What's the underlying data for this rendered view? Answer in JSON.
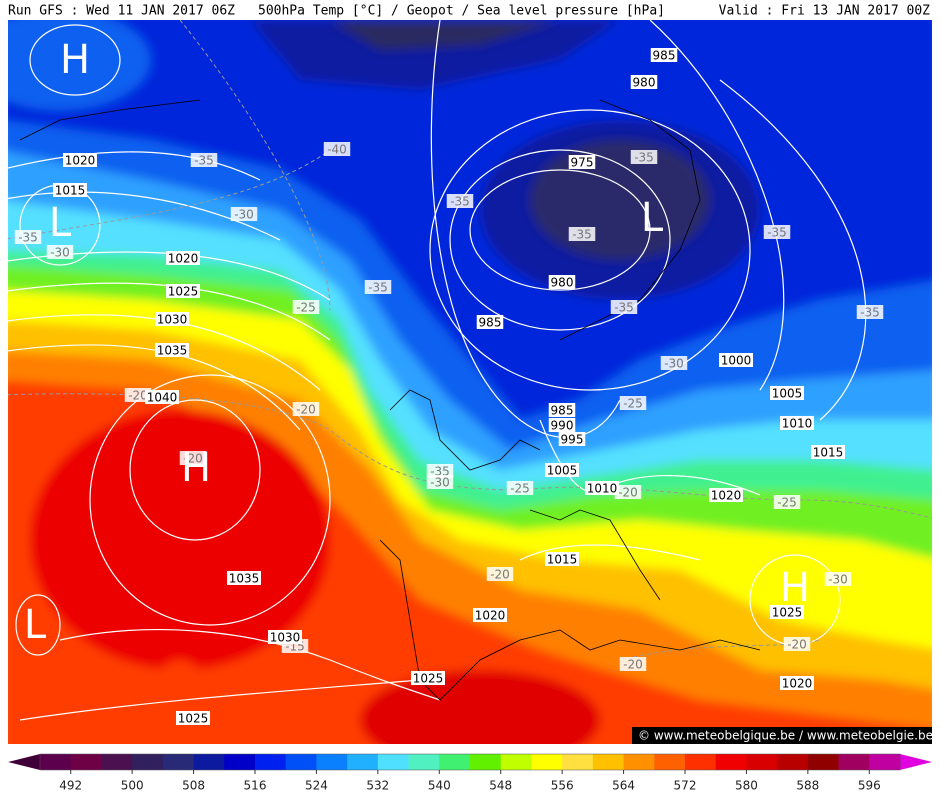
{
  "header": {
    "run": "Run GFS : Wed 11 JAN 2017 06Z",
    "title": "500hPa Temp [°C] / Geopot / Sea level pressure [hPa]",
    "valid": "Valid : Fri 13 JAN 2017 00Z"
  },
  "isobar_labels": [
    985,
    980,
    1020,
    1015,
    975,
    1020,
    1025,
    980,
    1030,
    985,
    1035,
    1000,
    1040,
    1005,
    985,
    990,
    995,
    1010,
    1015,
    1005,
    1010,
    1020,
    1015,
    1035,
    1020,
    1025,
    1030,
    1025,
    1020,
    1025
  ],
  "temperature_labels": [
    -40,
    -35,
    -35,
    -35,
    -30,
    -35,
    -30,
    -35,
    -35,
    -35,
    -25,
    -35,
    -35,
    -30,
    -20,
    -20,
    -25,
    -20,
    -35,
    -30,
    -25,
    -20,
    -25,
    -20,
    -30,
    -20,
    -15,
    -20
  ],
  "pressure_centers": [
    "H",
    "L",
    "L",
    "H",
    "H",
    "L"
  ],
  "colorbar": {
    "lim": [
      488,
      600
    ],
    "ticks": [
      492,
      500,
      508,
      516,
      524,
      532,
      540,
      548,
      556,
      564,
      572,
      580,
      588,
      596
    ],
    "colors": [
      "#5c004e",
      "#6e0046",
      "#4a1050",
      "#30205e",
      "#282a78",
      "#0c1aa0",
      "#0000c8",
      "#0020f0",
      "#0050f8",
      "#0a80ff",
      "#20b0ff",
      "#50e0ff",
      "#50f0c0",
      "#40f070",
      "#60f000",
      "#c0ff00",
      "#ffff00",
      "#ffe040",
      "#ffc000",
      "#ff9000",
      "#ff6000",
      "#ff3000",
      "#f00000",
      "#d80000",
      "#b80000",
      "#900000",
      "#a00060",
      "#c000a0"
    ],
    "under_color": "#400038",
    "over_color": "#e000e0"
  },
  "footer": {
    "credit": "© www.meteobelgique.be / www.meteobelgie.be"
  }
}
